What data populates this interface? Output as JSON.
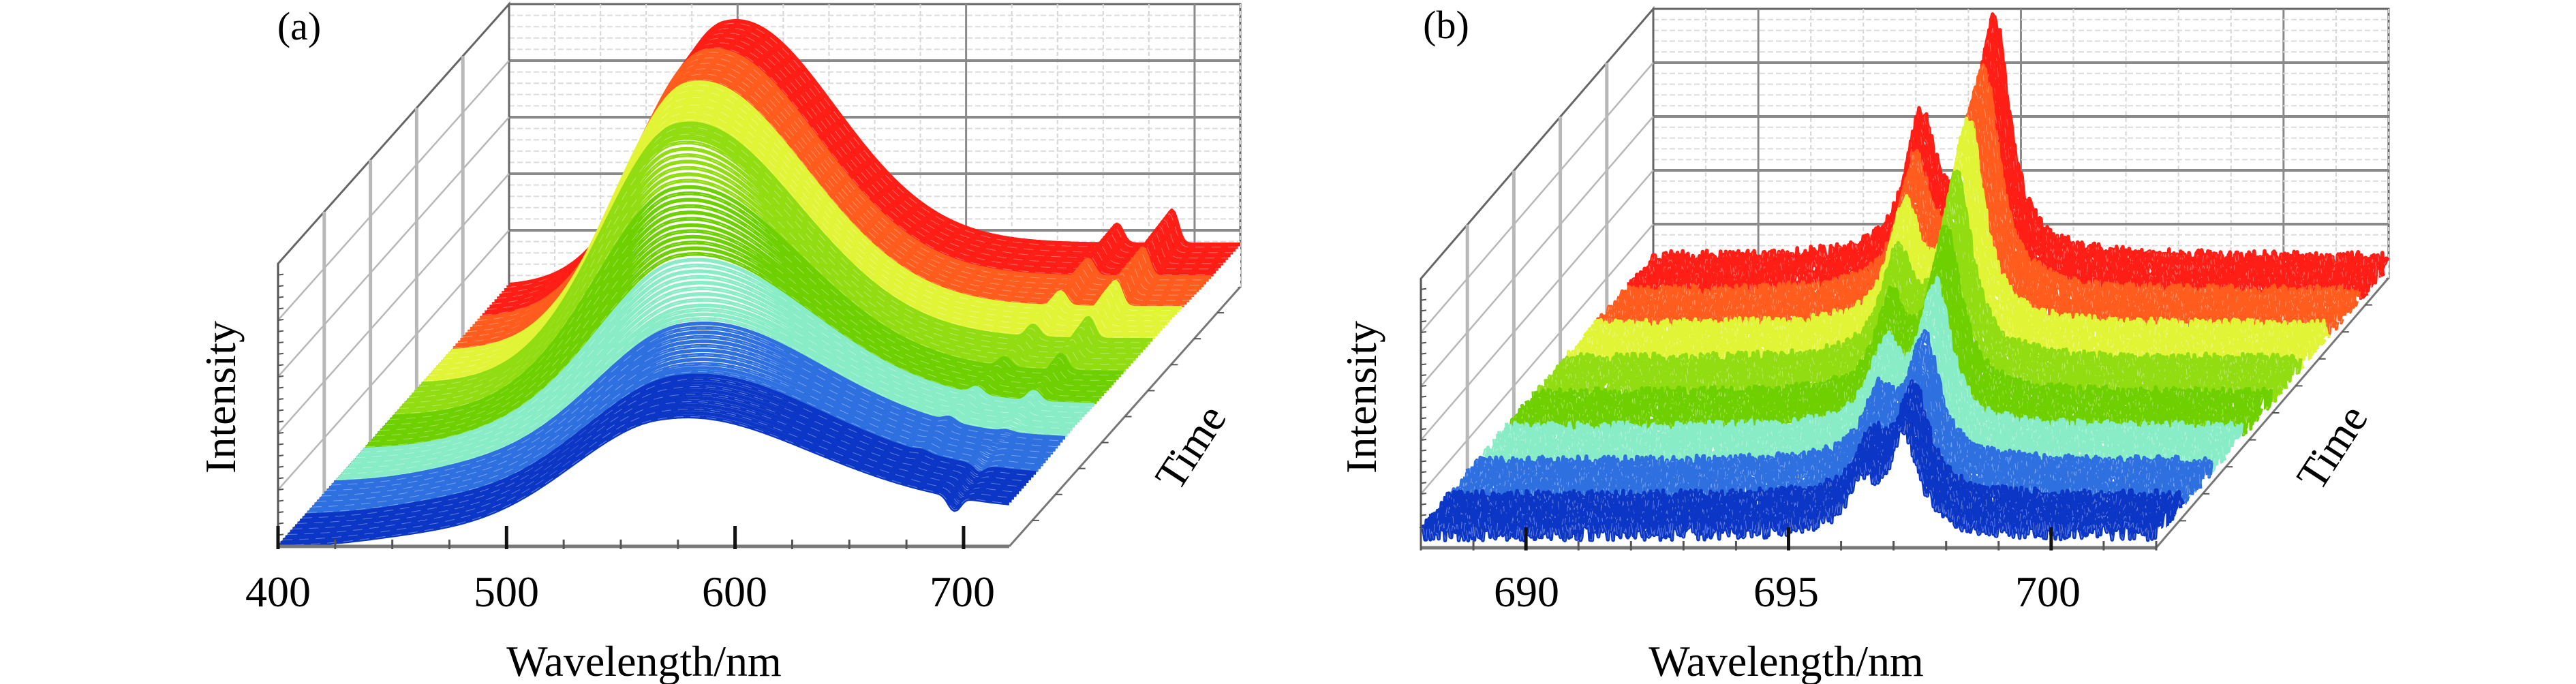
{
  "figure": {
    "panels": [
      "(a)",
      "(b)"
    ]
  },
  "chart_data": [
    {
      "type": "waterfall",
      "panel_label": "(a)",
      "xlabel": "Wavelength/nm",
      "ylabel": "Intensity",
      "zlabel": "Time",
      "xlim": [
        400,
        720
      ],
      "xtick_labels": [
        "400",
        "500",
        "600",
        "700"
      ],
      "xticks": [
        400,
        500,
        600,
        700
      ],
      "intensity_units": "arbitrary (normalized to wall height)",
      "bands": [
        {
          "color": "#0b36c6",
          "peak_nm": 566,
          "peak_intensity": 0.36,
          "sigma_left_nm": 40,
          "sigma_right_nm": 65,
          "tail": 0.08,
          "shoulder": 0.05,
          "line1_nm": 696,
          "line1_intensity": -0.05,
          "line2_nm": 671,
          "line2_intensity": 0.0
        },
        {
          "color": "#2f70e0",
          "peak_nm": 560,
          "peak_intensity": 0.4,
          "sigma_left_nm": 40,
          "sigma_right_nm": 62,
          "tail": 0.08,
          "shoulder": 0.06,
          "line1_nm": 695,
          "line1_intensity": -0.02,
          "line2_nm": 670,
          "line2_intensity": 0.01
        },
        {
          "color": "#88ecc6",
          "peak_nm": 548,
          "peak_intensity": 0.47,
          "sigma_left_nm": 38,
          "sigma_right_nm": 58,
          "tail": 0.09,
          "shoulder": 0.07,
          "line1_nm": 694,
          "line1_intensity": 0.02,
          "line2_nm": 669,
          "line2_intensity": 0.02
        },
        {
          "color": "#6fd000",
          "peak_nm": 530,
          "peak_intensity": 0.62,
          "sigma_left_nm": 35,
          "sigma_right_nm": 55,
          "tail": 0.1,
          "shoulder": 0.06,
          "line1_nm": 693,
          "line1_intensity": 0.05,
          "line2_nm": 668,
          "line2_intensity": 0.03
        },
        {
          "color": "#92dc12",
          "peak_nm": 515,
          "peak_intensity": 0.8,
          "sigma_left_nm": 33,
          "sigma_right_nm": 52,
          "tail": 0.11,
          "shoulder": 0.05,
          "line1_nm": 692,
          "line1_intensity": 0.07,
          "line2_nm": 668,
          "line2_intensity": 0.04
        },
        {
          "color": "#e2f436",
          "peak_nm": 505,
          "peak_intensity": 0.85,
          "sigma_left_nm": 31,
          "sigma_right_nm": 50,
          "tail": 0.12,
          "shoulder": 0.04,
          "line1_nm": 691,
          "line1_intensity": 0.09,
          "line2_nm": 667,
          "line2_intensity": 0.05
        },
        {
          "color": "#ff5c1e",
          "peak_nm": 498,
          "peak_intensity": 0.86,
          "sigma_left_nm": 30,
          "sigma_right_nm": 48,
          "tail": 0.12,
          "shoulder": 0.03,
          "line1_nm": 690,
          "line1_intensity": 0.1,
          "line2_nm": 666,
          "line2_intensity": 0.06
        },
        {
          "color": "#ff1e16",
          "peak_nm": 494,
          "peak_intensity": 0.85,
          "sigma_left_nm": 30,
          "sigma_right_nm": 46,
          "tail": 0.13,
          "shoulder": 0.02,
          "line1_nm": 690,
          "line1_intensity": 0.12,
          "line2_nm": 666,
          "line2_intensity": 0.07
        }
      ]
    },
    {
      "type": "waterfall",
      "panel_label": "(b)",
      "xlabel": "Wavelength/nm",
      "ylabel": "Intensity",
      "zlabel": "Time",
      "xlim": [
        688,
        702
      ],
      "xtick_labels": [
        "690",
        "695",
        "700"
      ],
      "xticks": [
        690,
        695,
        700
      ],
      "intensity_units": "arbitrary (normalized to wall height)",
      "line_halfwidth_nm": 0.35,
      "noise_level": 0.035,
      "bands": [
        {
          "color": "#0b36c6",
          "r1_nm": 697.2,
          "r1_intensity": 0.36,
          "r2_nm": 696.4,
          "r2_intensity": 0.16,
          "background": 0.06
        },
        {
          "color": "#2f70e0",
          "r1_nm": 696.8,
          "r1_intensity": 0.4,
          "r2_nm": 696.0,
          "r2_intensity": 0.2,
          "background": 0.06
        },
        {
          "color": "#88ecc6",
          "r1_nm": 696.4,
          "r1_intensity": 0.47,
          "r2_nm": 695.5,
          "r2_intensity": 0.25,
          "background": 0.06
        },
        {
          "color": "#6fd000",
          "r1_nm": 696.0,
          "r1_intensity": 0.55,
          "r2_nm": 695.0,
          "r2_intensity": 0.3,
          "background": 0.06
        },
        {
          "color": "#92dc12",
          "r1_nm": 695.6,
          "r1_intensity": 0.63,
          "r2_nm": 694.5,
          "r2_intensity": 0.35,
          "background": 0.06
        },
        {
          "color": "#e2f436",
          "r1_nm": 695.2,
          "r1_intensity": 0.72,
          "r2_nm": 694.0,
          "r2_intensity": 0.4,
          "background": 0.06
        },
        {
          "color": "#ff5c1e",
          "r1_nm": 694.9,
          "r1_intensity": 0.8,
          "r2_nm": 693.6,
          "r2_intensity": 0.45,
          "background": 0.06
        },
        {
          "color": "#ff1e16",
          "r1_nm": 694.5,
          "r1_intensity": 0.87,
          "r2_nm": 693.1,
          "r2_intensity": 0.5,
          "background": 0.06
        }
      ]
    }
  ]
}
